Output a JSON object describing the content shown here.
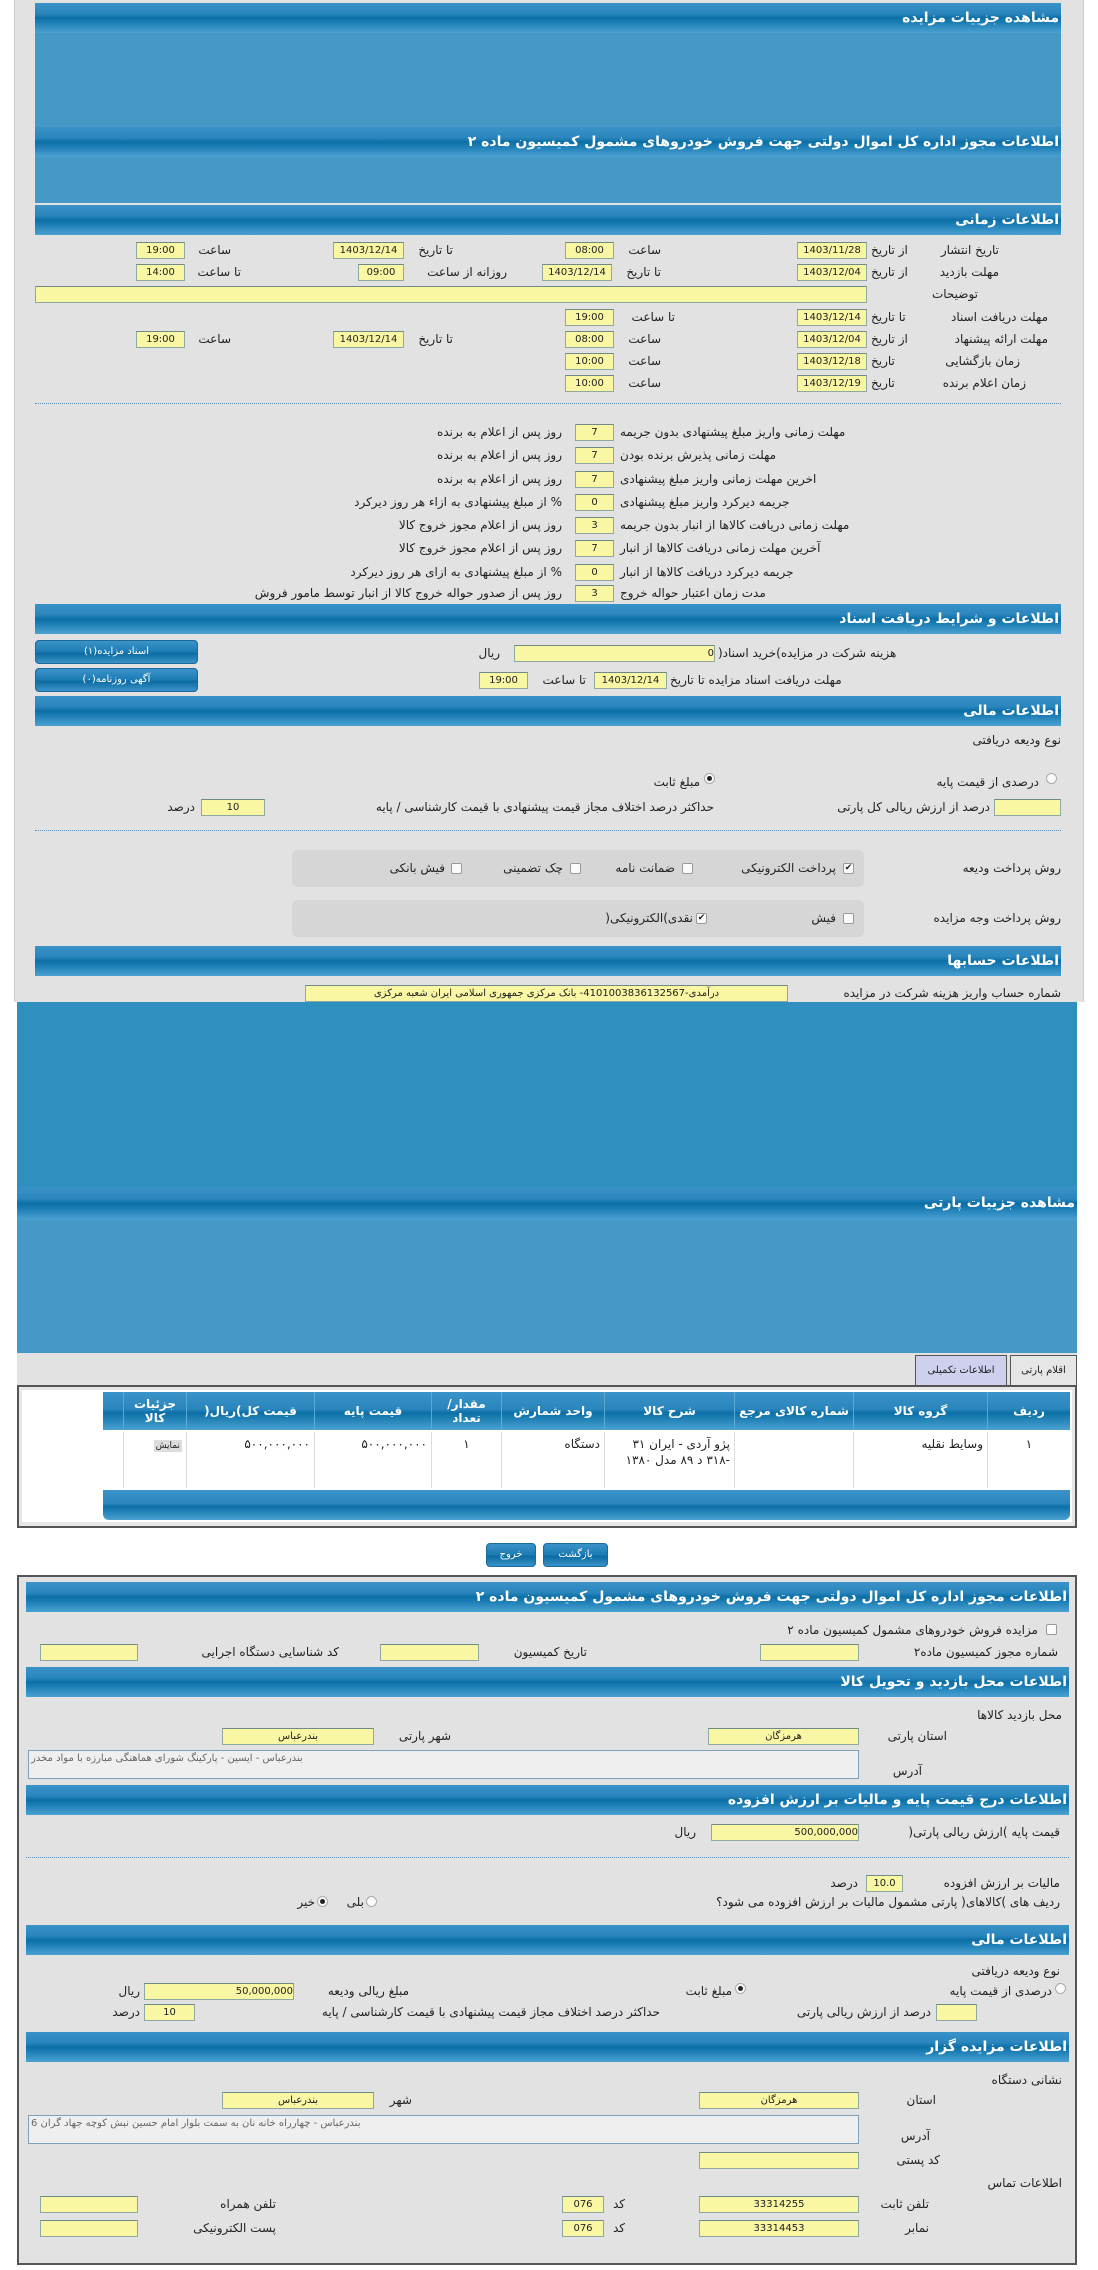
{
  "auction": {
    "title": "مشاهده جزییات مزایده",
    "permit_title": "اطلاعات مجوز اداره کل اموال دولتی جهت فروش خودروهای مشمول کمیسیون ماده ۲"
  },
  "time": {
    "title": "اطلاعات زمانی",
    "from_date": "از تاریخ",
    "to_date": "تا تاریخ",
    "date": "تاریخ",
    "hour": "ساعت",
    "to_hour": "تا ساعت",
    "daily_from": "روزانه از ساعت",
    "publish": {
      "label": "تاریخ انتشار",
      "from": "1403/11/28",
      "from_time": "08:00",
      "to": "1403/12/14",
      "to_time": "19:00"
    },
    "visit": {
      "label": "مهلت بازدید",
      "from": "1403/12/04",
      "to": "1403/12/14",
      "daily_from": "09:00",
      "daily_to": "14:00"
    },
    "notes": {
      "label": "توضیحات",
      "value": ""
    },
    "docs": {
      "label": "مهلت دریافت اسناد",
      "to": "1403/12/14",
      "to_time": "19:00"
    },
    "offer": {
      "label": "مهلت ارائه پیشنهاد",
      "from": "1403/12/04",
      "from_time": "08:00",
      "to": "1403/12/14",
      "to_time": "19:00"
    },
    "opening": {
      "label": "زمان بازگشایی",
      "date": "1403/12/18",
      "time": "10:00"
    },
    "winner": {
      "label": "زمان اعلام برنده",
      "date": "1403/12/19",
      "time": "10:00"
    }
  },
  "terms": [
    {
      "label": "مهلت زمانی واریز مبلغ پیشنهادی بدون جریمه",
      "value": "7",
      "suffix": "روز پس از اعلام به برنده"
    },
    {
      "label": "مهلت زمانی پذیرش برنده بودن",
      "value": "7",
      "suffix": "روز پس از اعلام به برنده"
    },
    {
      "label": "اخرین مهلت زمانی واریز مبلغ پیشنهادی",
      "value": "7",
      "suffix": "روز پس از اعلام به برنده"
    },
    {
      "label": "جریمه دیرکرد واریز مبلغ پیشنهادی",
      "value": "0",
      "suffix": "% از مبلغ پیشنهادی به ازاء هر روز دیرکرد"
    },
    {
      "label": "مهلت زمانی دریافت کالاها از انبار بدون جریمه",
      "value": "3",
      "suffix": "روز پس از اعلام مجوز خروج کالا"
    },
    {
      "label": "آخرین مهلت زمانی دریافت کالاها از انبار",
      "value": "7",
      "suffix": "روز پس از اعلام مجوز خروج کالا"
    },
    {
      "label": "جریمه دیرکرد دریافت کالاها از انبار",
      "value": "0",
      "suffix": "% از مبلغ پیشنهادی به ازای هر روز دیرکرد"
    },
    {
      "label": "مدت زمان اعتبار حواله خروج",
      "value": "3",
      "suffix": "روز پس از صدور حواله خروج کالا از انبار توسط مامور فروش"
    }
  ],
  "documents": {
    "title": "اطلاعات و شرایط دریافت اسناد",
    "fee_label": "هزینه شرکت در مزایده)خرید اسناد(",
    "fee": "0",
    "currency": "ریال",
    "deadline_label": "مهلت دریافت اسناد مزایده تا تاریخ",
    "deadline_date": "1403/12/14",
    "to_hour": "تا ساعت",
    "deadline_time": "19:00",
    "docs_button": "اسناد مزایده(۱)",
    "ads_button": "آگهی روزنامه(۰)"
  },
  "finance": {
    "title": "اطلاعات مالی",
    "deposit_type": "نوع ودیعه دریافتی",
    "opt_percent": "درصدی از قیمت پایه",
    "opt_fixed": "مبلغ ثابت",
    "selected": "مبلغ ثابت",
    "percent_label": "درصد از ارزش ریالی کل پارتی",
    "percent_value": "",
    "max_diff_label": "حداکثر درصد اختلاف مجاز قیمت پیشنهادی با قیمت کارشناسی / پایه",
    "max_diff": "10",
    "percent_unit": "درصد",
    "deposit_method_label": "روش پرداخت ودیعه",
    "deposit_methods": [
      {
        "label": "پرداخت الکترونیکی",
        "checked": true
      },
      {
        "label": "ضمانت نامه",
        "checked": false
      },
      {
        "label": "چک تضمینی",
        "checked": false
      },
      {
        "label": "فیش بانکی",
        "checked": false
      }
    ],
    "payment_method_label": "روش پرداخت وجه مزایده",
    "payment_methods": [
      {
        "label": "فیش",
        "checked": false
      },
      {
        "label": "نقدی)الکترونیکی(",
        "checked": true
      }
    ]
  },
  "accounts": {
    "title": "اطلاعات حسابها",
    "label": "شماره حساب واریز هزینه شرکت در مزایده",
    "value": "درآمدی-4101003836132567- بانک مرکزی جمهوری اسلامی ایران شعبه مرکزی"
  },
  "lot": {
    "title": "مشاهده جزییات پارتی",
    "tabs": [
      {
        "label": "اقلام پارتی",
        "active": false
      },
      {
        "label": "اطلاعات تکمیلی",
        "active": true
      }
    ],
    "columns": [
      "ردیف",
      "گروه کالا",
      "شماره کالای مرجع",
      "شرح کالا",
      "واحد شمارش",
      "مقدار/ تعداد",
      "قیمت پایه",
      "قیمت کل)ریال(",
      "جزئیات کالا"
    ],
    "rows": [
      {
        "index": "۱",
        "group": "وسایط نقلیه",
        "ref": "",
        "desc": "پژو آردی - ایران ۳۱ -۳۱۸ د ۸۹ مدل ۱۳۸۰",
        "unit": "دستگاه",
        "qty": "۱",
        "base": "۵۰۰,۰۰۰,۰۰۰",
        "total": "۵۰۰,۰۰۰,۰۰۰",
        "details": "نمایش"
      }
    ],
    "back_button": "بازگشت",
    "exit_button": "خروج"
  },
  "permit": {
    "title": "اطلاعات مجوز اداره کل اموال دولتی جهت فروش خودروهای مشمول کمیسیون ماده ۲",
    "checkbox_label": "مزایده فروش خودروهای مشمول کمیسیون ماده ۲",
    "checked": false,
    "number_label": "شماره مجوز کمیسیون ماده۲",
    "number": "",
    "date_label": "تاریخ کمیسیون",
    "date": "",
    "org_code_label": "کد شناسایی دستگاه اجرایی",
    "org_code": ""
  },
  "visit_location": {
    "title": "اطلاعات محل بازدید و تحویل کالا",
    "subtitle": "محل بازدید کالاها",
    "province_label": "استان پارتی",
    "province": "هرمزگان",
    "city_label": "شهر پارتی",
    "city": "بندرعباس",
    "address_label": "آدرس",
    "address": "بندرعباس - ایسین - پارکینگ شورای هماهنگی مبارزه با مواد مخدر"
  },
  "pricing": {
    "title": "اطلاعات درج قیمت پایه و مالیات بر ارزش افزوده",
    "base_label": "قیمت پایه )ارزش ریالی پارتی(",
    "base": "500,000,000",
    "currency": "ریال",
    "vat_label": "مالیات بر ارزش افزوده",
    "vat": "10.0",
    "percent_unit": "درصد",
    "vat_question": "ردیف های )کالاهای( پارتی مشمول مالیات بر ارزش افزوده می شود؟",
    "yes": "بلی",
    "no": "خیر",
    "selected": "خیر"
  },
  "finance2": {
    "title": "اطلاعات مالی",
    "deposit_type": "نوع ودیعه دریافتی",
    "opt_percent": "درصدی از قیمت پایه",
    "opt_fixed": "مبلغ ثابت",
    "selected": "مبلغ ثابت",
    "amount_label": "مبلغ ریالی ودیعه",
    "amount": "50,000,000",
    "currency": "ریال",
    "percent_label": "درصد از ارزش ریالی پارتی",
    "percent_value": "",
    "max_diff_label": "حداکثر درصد اختلاف مجاز قیمت پیشنهادی با قیمت کارشناسی / پایه",
    "max_diff": "10",
    "percent_unit": "درصد"
  },
  "auctioneer": {
    "title": "اطلاعات مزایده گزار",
    "address_title": "نشانی دستگاه",
    "province_label": "استان",
    "province": "هرمزگان",
    "city_label": "شهر",
    "city": "بندرعباس",
    "address_label": "آدرس",
    "address": "بندرعباس - چهارراه خانه نان به سمت بلوار امام حسین نبش کوچه جهاد گران 6",
    "postal_label": "کد پستی",
    "postal": "",
    "contact_title": "اطلاعات تماس",
    "phone_label": "تلفن ثابت",
    "phone": "33314255",
    "code_label": "کد",
    "phone_code": "076",
    "mobile_label": "تلفن همراه",
    "mobile": "",
    "fax_label": "نمابر",
    "fax": "33314453",
    "fax_code": "076",
    "email_label": "پست الکترونیکی",
    "email": ""
  },
  "colors": {
    "header": "#0b6fa6",
    "fill": "#4699c6",
    "input": "#f9f7a3",
    "panel": "#e2e2e2"
  }
}
